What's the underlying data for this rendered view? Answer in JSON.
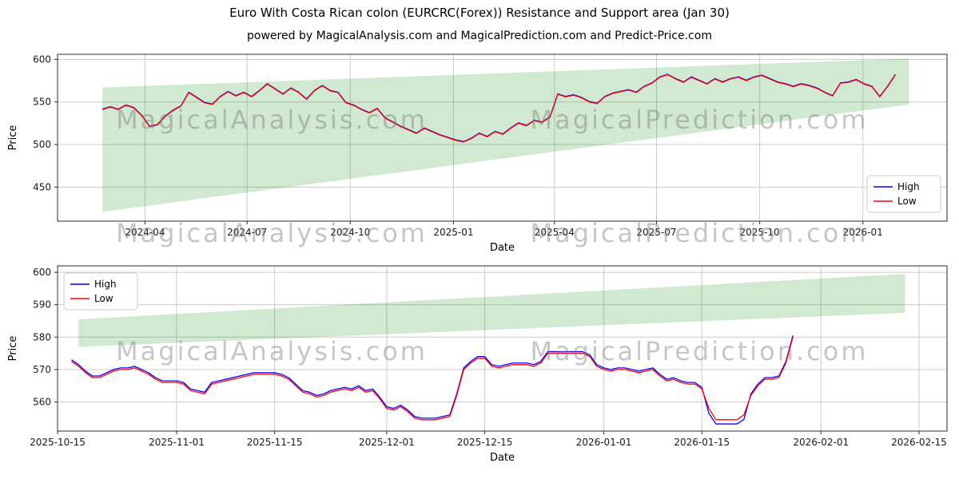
{
  "figure": {
    "title": "Euro With Costa Rican colon (EURCRC(Forex)) Resistance and Support area (Jan 30)",
    "subtitle": "powered by MagicalAnalysis.com and MagicalPrediction.com and Predict-Price.com",
    "watermarks": [
      "MagicalAnalysis.com",
      "MagicalPrediction.com"
    ],
    "colors": {
      "high": "#0000ff",
      "low": "#ff0000",
      "band": "#008000",
      "grid": "#cccccc",
      "spine": "#2b2b2b"
    }
  },
  "chart_data": [
    {
      "type": "line",
      "xlabel": "Date",
      "ylabel": "Price",
      "grid": true,
      "xlim": [
        "2024-01-14",
        "2026-03-17"
      ],
      "ylim": [
        410,
        606
      ],
      "yticks": [
        450,
        500,
        550,
        600
      ],
      "xticks": [
        {
          "date": "2024-04-01",
          "label": "2024-04"
        },
        {
          "date": "2024-07-01",
          "label": "2024-07"
        },
        {
          "date": "2024-10-01",
          "label": "2024-10"
        },
        {
          "date": "2025-01-01",
          "label": "2025-01"
        },
        {
          "date": "2025-04-01",
          "label": "2025-04"
        },
        {
          "date": "2025-07-01",
          "label": "2025-07"
        },
        {
          "date": "2025-10-01",
          "label": "2025-10"
        },
        {
          "date": "2026-01-01",
          "label": "2026-01"
        }
      ],
      "legend": {
        "position": "center-right",
        "entries": [
          {
            "label": "High",
            "color": "#0000ff"
          },
          {
            "label": "Low",
            "color": "#ff0000"
          }
        ]
      },
      "band": {
        "x": [
          "2024-02-23",
          "2026-02-11"
        ],
        "lower": [
          421,
          547
        ],
        "upper": [
          567,
          601
        ]
      },
      "dates": [
        "2024-02-23",
        "2024-03-01",
        "2024-03-08",
        "2024-03-15",
        "2024-03-22",
        "2024-03-29",
        "2024-04-05",
        "2024-04-12",
        "2024-04-19",
        "2024-04-26",
        "2024-05-03",
        "2024-05-10",
        "2024-05-17",
        "2024-05-24",
        "2024-05-31",
        "2024-06-07",
        "2024-06-14",
        "2024-06-21",
        "2024-06-28",
        "2024-07-05",
        "2024-07-12",
        "2024-07-19",
        "2024-07-26",
        "2024-08-02",
        "2024-08-09",
        "2024-08-16",
        "2024-08-23",
        "2024-08-30",
        "2024-09-06",
        "2024-09-13",
        "2024-09-20",
        "2024-09-27",
        "2024-10-04",
        "2024-10-11",
        "2024-10-18",
        "2024-10-25",
        "2024-11-01",
        "2024-11-08",
        "2024-11-15",
        "2024-11-22",
        "2024-11-29",
        "2024-12-06",
        "2024-12-13",
        "2024-12-20",
        "2024-12-27",
        "2025-01-03",
        "2025-01-10",
        "2025-01-17",
        "2025-01-24",
        "2025-01-31",
        "2025-02-07",
        "2025-02-14",
        "2025-02-21",
        "2025-02-28",
        "2025-03-07",
        "2025-03-14",
        "2025-03-21",
        "2025-03-28",
        "2025-04-04",
        "2025-04-11",
        "2025-04-18",
        "2025-04-25",
        "2025-05-02",
        "2025-05-09",
        "2025-05-16",
        "2025-05-23",
        "2025-05-30",
        "2025-06-06",
        "2025-06-13",
        "2025-06-20",
        "2025-06-27",
        "2025-07-04",
        "2025-07-11",
        "2025-07-18",
        "2025-07-25",
        "2025-08-01",
        "2025-08-08",
        "2025-08-15",
        "2025-08-22",
        "2025-08-29",
        "2025-09-05",
        "2025-09-12",
        "2025-09-19",
        "2025-09-26",
        "2025-10-03",
        "2025-10-10",
        "2025-10-17",
        "2025-10-24",
        "2025-10-31",
        "2025-11-07",
        "2025-11-14",
        "2025-11-21",
        "2025-11-28",
        "2025-12-05",
        "2025-12-12",
        "2025-12-19",
        "2025-12-26",
        "2026-01-02",
        "2026-01-09",
        "2026-01-16",
        "2026-01-23",
        "2026-01-30"
      ],
      "series": [
        {
          "name": "High",
          "color": "#0000ff",
          "values": [
            541.5,
            544.5,
            541.5,
            546.5,
            543.5,
            534.5,
            521.5,
            523.5,
            533.5,
            540.5,
            545.5,
            561.5,
            555.5,
            549.5,
            547.5,
            556.5,
            562.5,
            557.5,
            561.5,
            556.5,
            563.5,
            571.5,
            565.5,
            559.5,
            566.5,
            561.5,
            553.5,
            563.5,
            569.5,
            563.5,
            561.5,
            549.5,
            546.5,
            541.5,
            537.5,
            542.5,
            531.5,
            526.5,
            521.5,
            517.5,
            513.5,
            519.5,
            515.5,
            511.5,
            508.5,
            505.5,
            503.5,
            507.5,
            513.5,
            509.5,
            515.5,
            512.5,
            519.5,
            525.5,
            522.5,
            528.5,
            526.5,
            532.5,
            559.5,
            556.5,
            558.5,
            555.5,
            550.5,
            548.5,
            556.5,
            560.5,
            562.5,
            564.5,
            561.5,
            568.5,
            572.5,
            579.5,
            582.5,
            577.5,
            573.5,
            579.5,
            575.5,
            571.5,
            577.5,
            573.5,
            577.5,
            579.5,
            575.5,
            579.5,
            581.5,
            577.5,
            573.5,
            571.5,
            568.5,
            571.5,
            569.5,
            566.5,
            561.5,
            557.5,
            572.5,
            573.5,
            576.5,
            571.5,
            568.5,
            556.5,
            568.5,
            582.5
          ]
        },
        {
          "name": "Low",
          "color": "#ff0000",
          "values": [
            541,
            544,
            541,
            546,
            543,
            534,
            521,
            523,
            533,
            540,
            545,
            561,
            555,
            549,
            547,
            556,
            562,
            557,
            561,
            556,
            563,
            571,
            565,
            559,
            566,
            561,
            553,
            563,
            569,
            563,
            561,
            549,
            546,
            541,
            537,
            542,
            531,
            526,
            521,
            517,
            513,
            519,
            515,
            511,
            508,
            505,
            503,
            507,
            513,
            509,
            515,
            512,
            519,
            525,
            522,
            528,
            526,
            532,
            559,
            556,
            558,
            555,
            550,
            548,
            556,
            560,
            562,
            564,
            561,
            568,
            572,
            579,
            582,
            577,
            573,
            579,
            575,
            571,
            577,
            573,
            577,
            579,
            575,
            579,
            581,
            577,
            573,
            571,
            568,
            571,
            569,
            566,
            561,
            557,
            572,
            573,
            576,
            571,
            568,
            556,
            568,
            582
          ]
        }
      ]
    },
    {
      "type": "line",
      "xlabel": "Date",
      "ylabel": "Price",
      "grid": true,
      "xlim": [
        "2025-10-15",
        "2026-02-19"
      ],
      "ylim": [
        551,
        602
      ],
      "yticks": [
        560,
        570,
        580,
        590,
        600
      ],
      "xticks": [
        {
          "date": "2025-10-15",
          "label": "2025-10-15"
        },
        {
          "date": "2025-11-01",
          "label": "2025-11-01"
        },
        {
          "date": "2025-11-15",
          "label": "2025-11-15"
        },
        {
          "date": "2025-12-01",
          "label": "2025-12-01"
        },
        {
          "date": "2025-12-15",
          "label": "2025-12-15"
        },
        {
          "date": "2026-01-01",
          "label": "2026-01-01"
        },
        {
          "date": "2026-01-15",
          "label": "2026-01-15"
        },
        {
          "date": "2026-02-01",
          "label": "2026-02-01"
        },
        {
          "date": "2026-02-15",
          "label": "2026-02-15"
        }
      ],
      "legend": {
        "position": "upper-left",
        "entries": [
          {
            "label": "High",
            "color": "#0000ff"
          },
          {
            "label": "Low",
            "color": "#ff0000"
          }
        ]
      },
      "band": {
        "x": [
          "2025-10-18",
          "2026-02-13"
        ],
        "lower": [
          577,
          587.5
        ],
        "upper": [
          585.5,
          599.5
        ]
      },
      "dates": [
        "2025-10-17",
        "2025-10-18",
        "2025-10-19",
        "2025-10-20",
        "2025-10-21",
        "2025-10-22",
        "2025-10-23",
        "2025-10-24",
        "2025-10-25",
        "2025-10-26",
        "2025-10-27",
        "2025-10-28",
        "2025-10-29",
        "2025-10-30",
        "2025-10-31",
        "2025-11-01",
        "2025-11-02",
        "2025-11-03",
        "2025-11-04",
        "2025-11-05",
        "2025-11-06",
        "2025-11-07",
        "2025-11-08",
        "2025-11-09",
        "2025-11-10",
        "2025-11-11",
        "2025-11-12",
        "2025-11-13",
        "2025-11-14",
        "2025-11-15",
        "2025-11-16",
        "2025-11-17",
        "2025-11-18",
        "2025-11-19",
        "2025-11-20",
        "2025-11-21",
        "2025-11-22",
        "2025-11-23",
        "2025-11-24",
        "2025-11-25",
        "2025-11-26",
        "2025-11-27",
        "2025-11-28",
        "2025-11-29",
        "2025-11-30",
        "2025-12-01",
        "2025-12-02",
        "2025-12-03",
        "2025-12-04",
        "2025-12-05",
        "2025-12-06",
        "2025-12-07",
        "2025-12-08",
        "2025-12-09",
        "2025-12-10",
        "2025-12-11",
        "2025-12-12",
        "2025-12-13",
        "2025-12-14",
        "2025-12-15",
        "2025-12-16",
        "2025-12-17",
        "2025-12-18",
        "2025-12-19",
        "2025-12-20",
        "2025-12-21",
        "2025-12-22",
        "2025-12-23",
        "2025-12-24",
        "2025-12-25",
        "2025-12-26",
        "2025-12-27",
        "2025-12-28",
        "2025-12-29",
        "2025-12-30",
        "2025-12-31",
        "2026-01-01",
        "2026-01-02",
        "2026-01-03",
        "2026-01-04",
        "2026-01-05",
        "2026-01-06",
        "2026-01-07",
        "2026-01-08",
        "2026-01-09",
        "2026-01-10",
        "2026-01-11",
        "2026-01-12",
        "2026-01-13",
        "2026-01-14",
        "2026-01-15",
        "2026-01-16",
        "2026-01-17",
        "2026-01-18",
        "2026-01-19",
        "2026-01-20",
        "2026-01-21",
        "2026-01-22",
        "2026-01-23",
        "2026-01-24",
        "2026-01-25",
        "2026-01-26",
        "2026-01-27",
        "2026-01-28"
      ],
      "series": [
        {
          "name": "High",
          "color": "#0000ff",
          "values": [
            573,
            571.5,
            569.5,
            568,
            568,
            569,
            570,
            570.5,
            570.5,
            571,
            570,
            569,
            567.5,
            566.5,
            566.5,
            566.5,
            566,
            564,
            563.5,
            563,
            566,
            566.5,
            567,
            567.5,
            568,
            568.5,
            569,
            569,
            569,
            569,
            568.5,
            567.5,
            565.5,
            563.5,
            563,
            562,
            562.5,
            563.5,
            564,
            564.5,
            564,
            565,
            563.5,
            564,
            561.5,
            558.5,
            558,
            559,
            557.5,
            555.5,
            555,
            555,
            555,
            555.5,
            556,
            562.5,
            570.5,
            572.5,
            574,
            574,
            571.5,
            571,
            571.5,
            572,
            572,
            572,
            571.5,
            572.5,
            575.5,
            575.5,
            575.5,
            575.5,
            575.5,
            575.5,
            574.5,
            571.5,
            570.5,
            570,
            570.5,
            570.5,
            570,
            569.5,
            570,
            570.5,
            568.5,
            567,
            567.5,
            566.5,
            566,
            566,
            564.5,
            556.5,
            553.2,
            553.2,
            553.2,
            553.2,
            554.6,
            562.5,
            565.5,
            567.5,
            567.5,
            568,
            572.5,
            580.5
          ]
        },
        {
          "name": "Low",
          "color": "#ff0000",
          "values": [
            572.5,
            571,
            569,
            567.5,
            567.5,
            568.5,
            569.5,
            570,
            570,
            570.5,
            569.5,
            568.5,
            567,
            566,
            566,
            566,
            565.5,
            563.5,
            563,
            562.5,
            565.5,
            566,
            566.5,
            567,
            567.5,
            568,
            568.5,
            568.5,
            568.5,
            568.5,
            568,
            567,
            565,
            563,
            562.5,
            561.5,
            562,
            563,
            563.5,
            564,
            563.5,
            564.5,
            563,
            563.5,
            561,
            558,
            557.5,
            558.5,
            557,
            555,
            554.5,
            554.5,
            554.5,
            555,
            555.5,
            562,
            570,
            572,
            573.5,
            573.5,
            571,
            570.5,
            571,
            571.5,
            571.5,
            571.5,
            571,
            572,
            575,
            575,
            575,
            575,
            575,
            575,
            574,
            571,
            570,
            569.5,
            570,
            570,
            569.5,
            569,
            569.5,
            570,
            568,
            566.5,
            567,
            566,
            565.5,
            565.5,
            564,
            558,
            554.5,
            554.5,
            554.5,
            554.5,
            556,
            562,
            565,
            567,
            567,
            567.5,
            572,
            580
          ]
        }
      ]
    }
  ]
}
